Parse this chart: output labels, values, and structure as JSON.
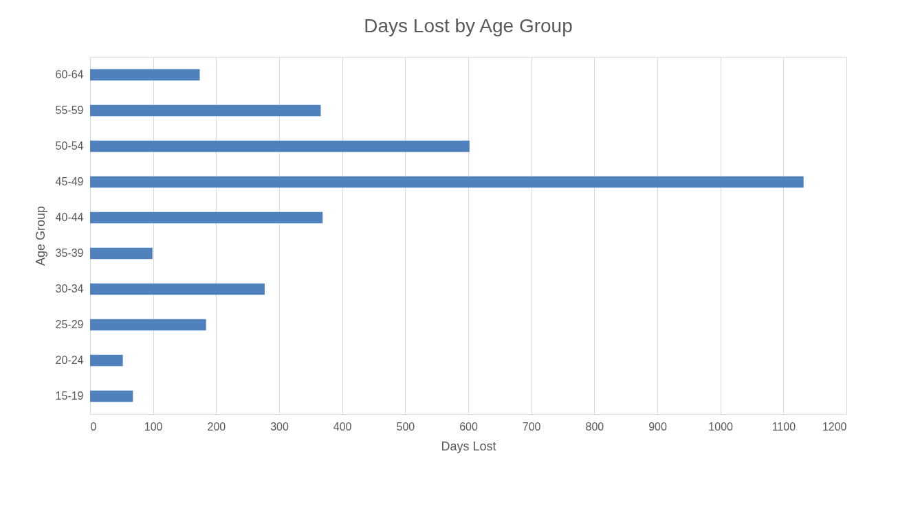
{
  "chart_data": {
    "type": "bar",
    "orientation": "horizontal",
    "title": "Days Lost by Age Group",
    "xlabel": "Days Lost",
    "ylabel": "Age Group",
    "categories": [
      "60-64",
      "55-59",
      "50-54",
      "45-49",
      "40-44",
      "35-39",
      "30-34",
      "25-29",
      "20-24",
      "15-19"
    ],
    "values": [
      174,
      366,
      602,
      1132,
      369,
      99,
      277,
      184,
      52,
      68
    ],
    "color": "#4f81bd",
    "xlim": [
      0,
      1200
    ],
    "xticks": [
      0,
      100,
      200,
      300,
      400,
      500,
      600,
      700,
      800,
      900,
      1000,
      1100,
      1200
    ],
    "grid": "x"
  }
}
